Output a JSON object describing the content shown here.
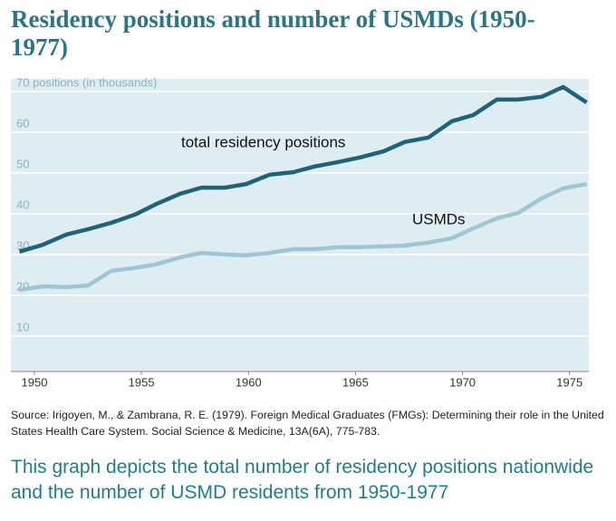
{
  "chart_data": {
    "type": "line",
    "title": "Residency positions and number of USMDs (1950-1977)",
    "annotations": [
      "total residency positions",
      "USMDs"
    ],
    "source": "Source: Irigoyen, M., & Zambrana, R. E. (1979). Foreign Medical Graduates (FMGs): Determining their role in the United States Health Care System. Social Science & Medicine, 13A(6A), 775-783.",
    "caption": "This graph depicts the total number of residency positions nationwide and the number of USMD residents from 1950-1977",
    "x": [
      1949.3,
      1950.4,
      1951.5,
      1952.5,
      1953.6,
      1954.7,
      1955.7,
      1956.8,
      1957.8,
      1958.9,
      1959.9,
      1961.0,
      1962.1,
      1963.1,
      1964.2,
      1965.2,
      1966.3,
      1967.3,
      1968.4,
      1969.5,
      1970.5,
      1971.6,
      1972.6,
      1973.7,
      1974.7,
      1975.8
    ],
    "series": [
      {
        "name": "total residency positions",
        "color": "#1d6478",
        "values": [
          30.7,
          32.4,
          34.9,
          36.2,
          37.8,
          39.8,
          42.4,
          44.9,
          46.4,
          46.4,
          47.3,
          49.6,
          50.2,
          51.6,
          52.7,
          53.8,
          55.3,
          57.6,
          58.7,
          62.7,
          64.2,
          68.0,
          68.0,
          68.7,
          71.1,
          67.3
        ]
      },
      {
        "name": "USMDs",
        "color": "#9ec7d3",
        "values": [
          21.3,
          22.2,
          22.0,
          22.4,
          26.0,
          26.7,
          27.6,
          29.3,
          30.4,
          30.0,
          29.8,
          30.4,
          31.3,
          31.3,
          31.8,
          31.8,
          32.0,
          32.2,
          32.9,
          34.0,
          36.4,
          38.9,
          40.2,
          43.8,
          46.2,
          47.3
        ]
      }
    ],
    "xlim": [
      1948.9,
      1975.9
    ],
    "xticks": [
      1950,
      1955,
      1960,
      1965,
      1970,
      1975
    ],
    "ylim": [
      1.3,
      73.1
    ],
    "yticks": [
      10,
      20,
      30,
      40,
      50,
      60,
      {
        "value": 70,
        "label": "70 positions (in thousands)"
      }
    ],
    "grid": true,
    "background": "#deedf1"
  }
}
